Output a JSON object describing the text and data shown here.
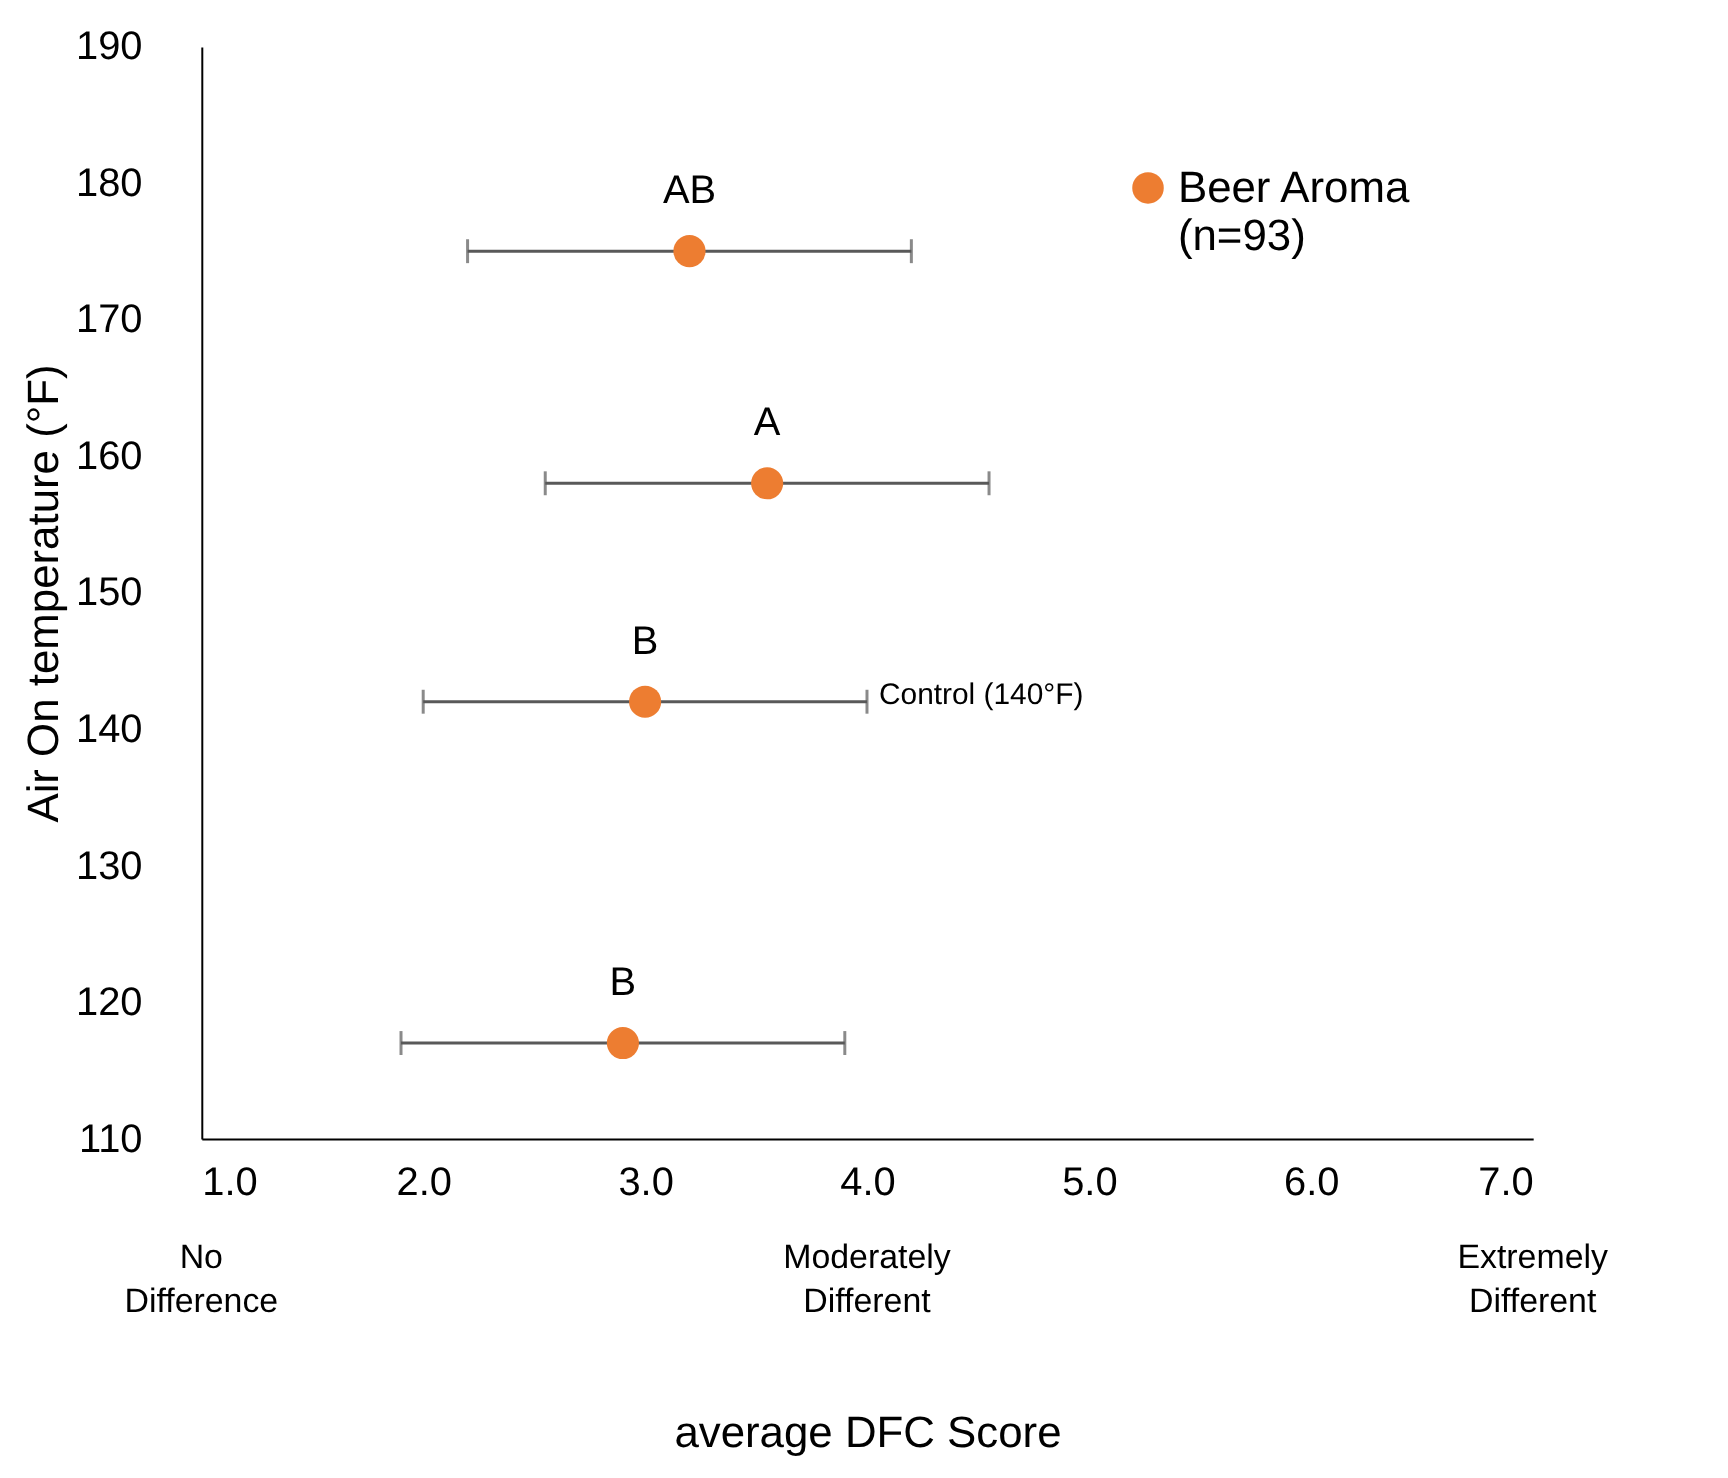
{
  "chart_data": {
    "type": "scatter",
    "xlabel": "average DFC Score",
    "ylabel": "Air On temperature (°F)",
    "x": [
      3.2,
      3.55,
      3.0,
      2.9
    ],
    "series": [
      {
        "name": "Beer Aroma\n(n=93)",
        "color": "#ed7d31",
        "values": [
          175,
          158,
          142,
          117
        ],
        "xerrors": [
          1.0,
          1.0,
          1.0,
          1.0
        ]
      }
    ],
    "xlim": [
      1,
      7
    ],
    "xticks": [
      {
        "value": 1,
        "label": "1.0"
      },
      {
        "value": 2,
        "label": "2.0"
      },
      {
        "value": 3,
        "label": "3.0"
      },
      {
        "value": 4,
        "label": "4.0"
      },
      {
        "value": 5,
        "label": "5.0"
      },
      {
        "value": 6,
        "label": "6.0"
      },
      {
        "value": 7,
        "label": "7.0"
      }
    ],
    "ylim": [
      110,
      190
    ],
    "yticks": [
      110,
      120,
      130,
      140,
      150,
      160,
      170,
      180,
      190
    ],
    "annotations": [
      {
        "text": "AB",
        "x": 3.2,
        "y": 175
      },
      {
        "text": "A",
        "x": 3.55,
        "y": 158
      },
      {
        "text": "B",
        "x": 3.0,
        "y": 142
      },
      {
        "text": "B",
        "x": 2.9,
        "y": 117
      },
      {
        "text": "Control (140°F)",
        "x": 4.0,
        "y": 142
      },
      "No\nDifference",
      "Moderately\nDifferent",
      "Extremely\nDifferent"
    ],
    "grid": false,
    "legend": "top right",
    "marker": "circle"
  }
}
